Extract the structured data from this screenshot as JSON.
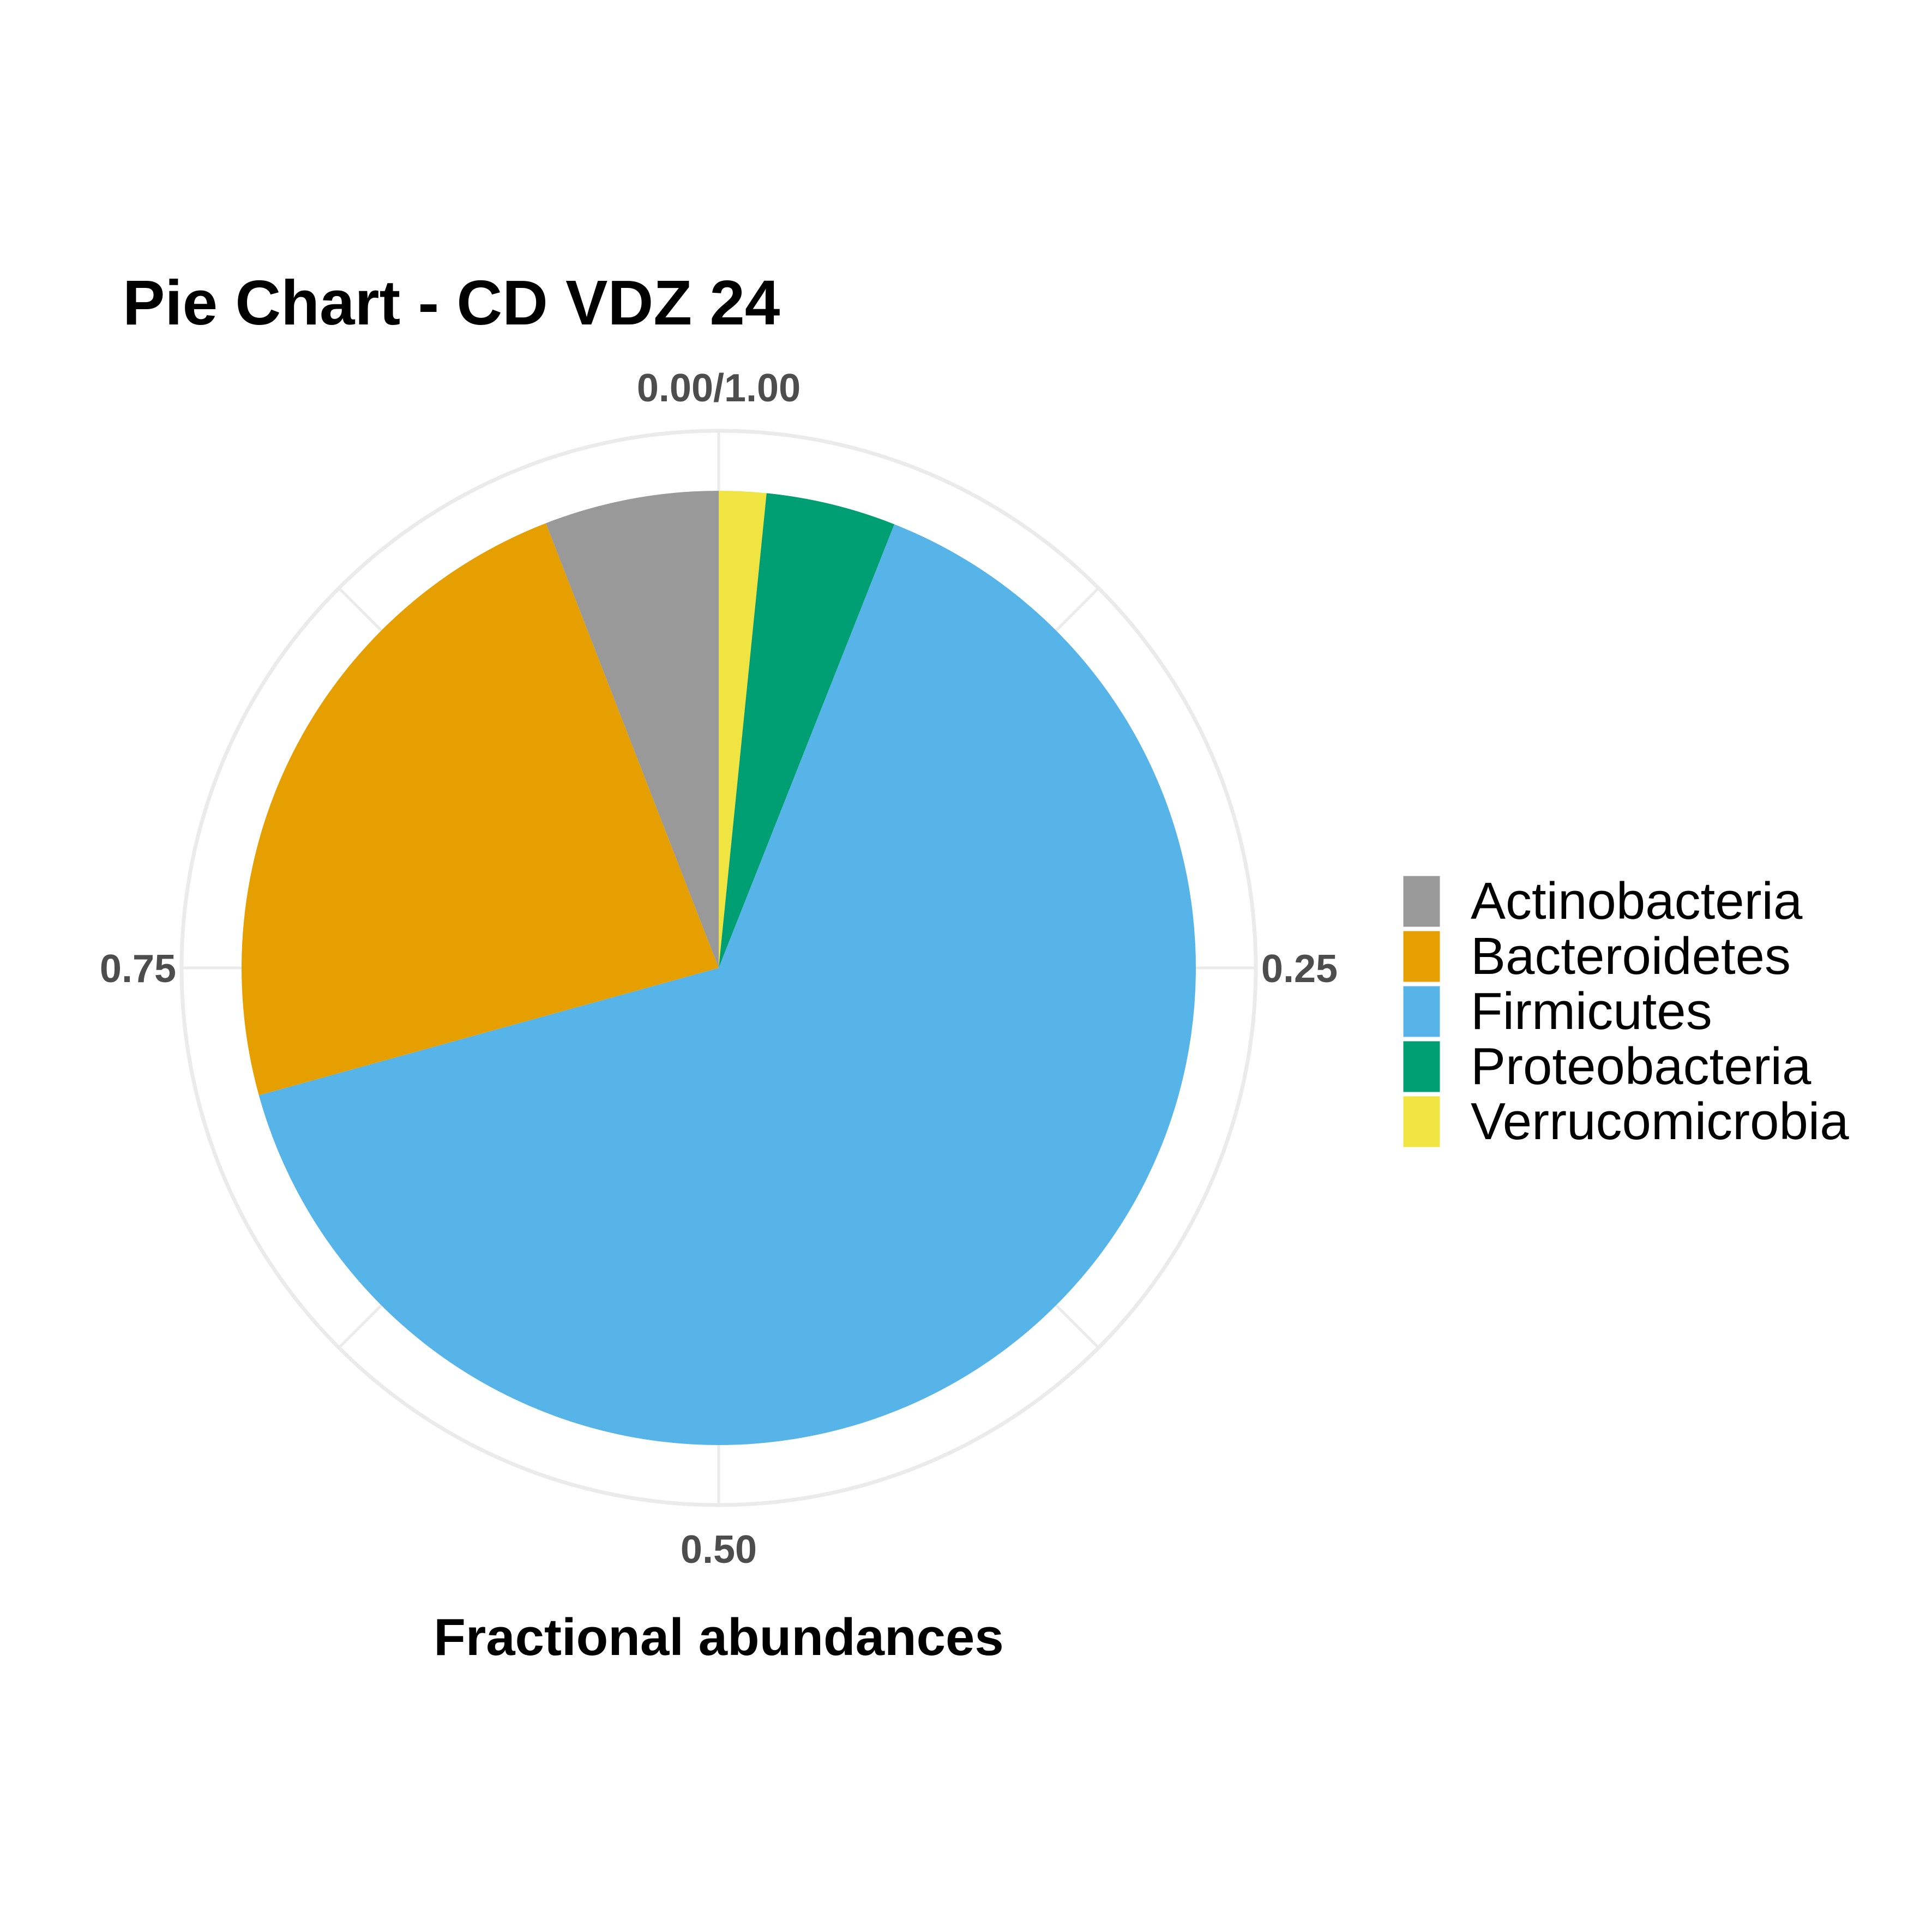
{
  "chart_data": {
    "type": "pie",
    "title": "Pie Chart - CD VDZ 24",
    "xlabel": "Fractional abundances",
    "tick_labels": [
      "0.00/1.00",
      "0.25",
      "0.50",
      "0.75"
    ],
    "tick_values": [
      0,
      0.25,
      0.5,
      0.75
    ],
    "slices": [
      {
        "name": "Verrucomicrobia",
        "value": 0.016,
        "color": "#F0E442"
      },
      {
        "name": "Proteobacteria",
        "value": 0.044,
        "color": "#009E73"
      },
      {
        "name": "Firmicutes",
        "value": 0.647,
        "color": "#56B4E9"
      },
      {
        "name": "Bacteroidetes",
        "value": 0.234,
        "color": "#E69F00"
      },
      {
        "name": "Actinobacteria",
        "value": 0.059,
        "color": "#999999"
      }
    ],
    "legend": [
      "Actinobacteria",
      "Bacteroidetes",
      "Firmicutes",
      "Proteobacteria",
      "Verrucomicrobia"
    ],
    "legend_position": "right",
    "grid": true,
    "direction": "clockwise from top"
  }
}
